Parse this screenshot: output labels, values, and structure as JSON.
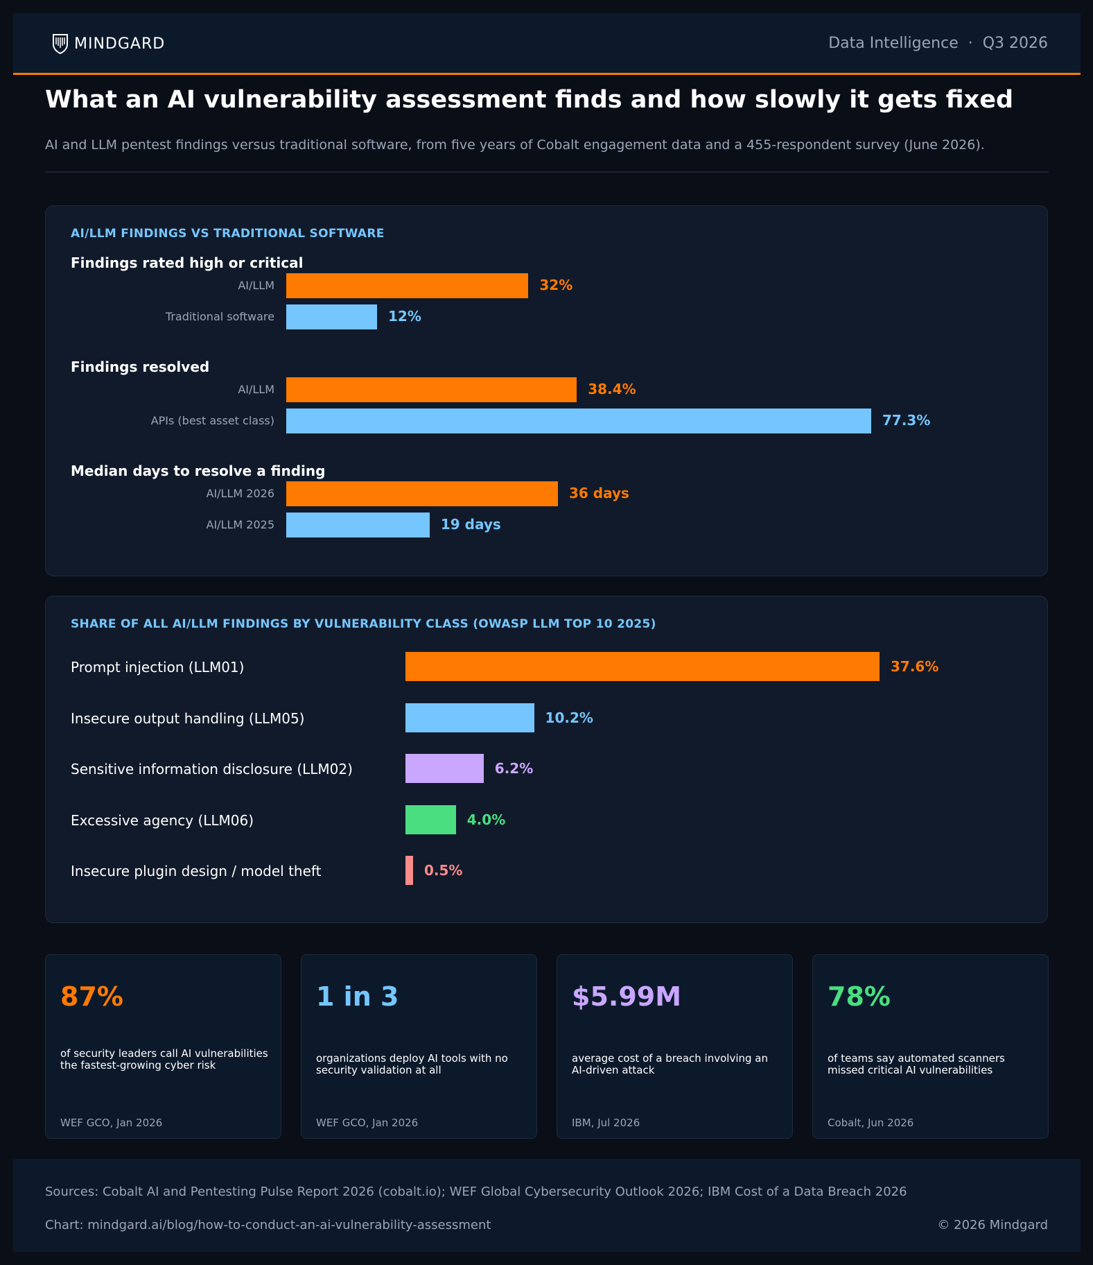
{
  "header": {
    "logo_text": "MINDGARD",
    "right_text": "Data Intelligence  ·  Q3 2026"
  },
  "title": "What an AI vulnerability assessment finds and how slowly it gets fixed",
  "subtitle": "AI and LLM pentest findings versus traditional software, from five years of Cobalt engagement data and a 455-respondent survey (June 2026).",
  "colors": {
    "accent": "#ff7a00",
    "blue": "#75c6fe",
    "purple": "#c9a7fe",
    "green": "#4ade80",
    "red": "#f98b8b"
  },
  "chart_data": [
    {
      "type": "bar",
      "title": "AI/LLM FINDINGS VS TRADITIONAL SOFTWARE",
      "groups": [
        {
          "title": "Findings rated high or critical",
          "rows": [
            {
              "label": "AI/LLM",
              "value": 32,
              "display": "32%",
              "color": "#ff7a00"
            },
            {
              "label": "Traditional software",
              "value": 12,
              "display": "12%",
              "color": "#75c6fe"
            }
          ]
        },
        {
          "title": "Findings resolved",
          "rows": [
            {
              "label": "AI/LLM",
              "value": 38.4,
              "display": "38.4%",
              "color": "#ff7a00"
            },
            {
              "label": "APIs (best asset class)",
              "value": 77.3,
              "display": "77.3%",
              "color": "#75c6fe"
            }
          ]
        },
        {
          "title": "Median days to resolve a finding",
          "rows": [
            {
              "label": "AI/LLM 2026",
              "value": 36,
              "display": "36 days",
              "color": "#ff7a00"
            },
            {
              "label": "AI/LLM 2025",
              "value": 19,
              "display": "19 days",
              "color": "#75c6fe"
            }
          ]
        }
      ]
    },
    {
      "type": "bar",
      "title": "SHARE OF ALL AI/LLM FINDINGS BY VULNERABILITY CLASS (OWASP LLM TOP 10 2025)",
      "categories": [
        "Prompt injection (LLM01)",
        "Insecure output handling (LLM05)",
        "Sensitive information disclosure (LLM02)",
        "Excessive agency (LLM06)",
        "Insecure plugin design / model theft"
      ],
      "values": [
        37.6,
        10.2,
        6.2,
        4.0,
        0.5
      ],
      "labels": [
        "37.6%",
        "10.2%",
        "6.2%",
        "4.0%",
        "0.5%"
      ],
      "colors": [
        "#ff7a00",
        "#75c6fe",
        "#c9a7fe",
        "#4ade80",
        "#f98b8b"
      ]
    }
  ],
  "stats": [
    {
      "value": "87%",
      "desc": "of security leaders call AI vulnerabilities the fastest-growing cyber risk",
      "source": "WEF GCO, Jan 2026",
      "color": "#ff7a00"
    },
    {
      "value": "1 in 3",
      "desc": "organizations deploy AI tools with no security validation at all",
      "source": "WEF GCO, Jan 2026",
      "color": "#75c6fe"
    },
    {
      "value": "$5.99M",
      "desc": "average cost of a breach involving an AI-driven attack",
      "source": "IBM, Jul 2026",
      "color": "#c9a7fe"
    },
    {
      "value": "78%",
      "desc": "of teams say automated scanners missed critical AI vulnerabilities",
      "source": "Cobalt, Jun 2026",
      "color": "#4ade80"
    }
  ],
  "footer": {
    "sources": "Sources: Cobalt AI and Pentesting Pulse Report 2026 (cobalt.io); WEF Global Cybersecurity Outlook 2026; IBM Cost of a Data Breach 2026",
    "chart_link": "Chart: mindgard.ai/blog/how-to-conduct-an-ai-vulnerability-assessment",
    "copyright": "© 2026 Mindgard"
  }
}
